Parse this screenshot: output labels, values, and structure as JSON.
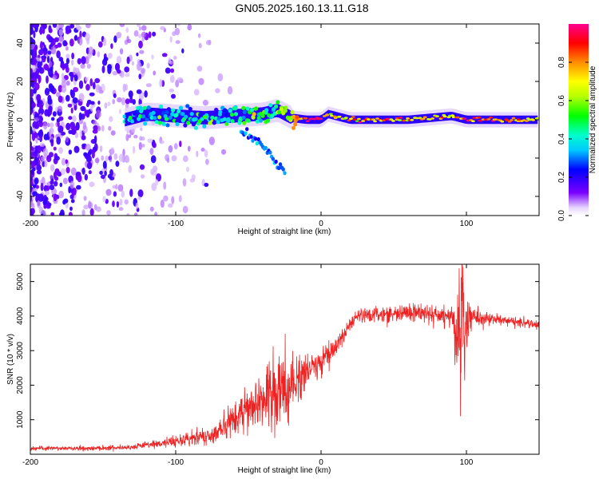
{
  "title": "GN05.2025.160.13.11.G18",
  "chart_data": [
    {
      "type": "heatmap",
      "xlabel": "Height of straight line (km)",
      "ylabel": "Frequency (Hz)",
      "xlim": [
        -200,
        150
      ],
      "ylim": [
        -50,
        50
      ],
      "x_ticks": [
        -200,
        -100,
        0,
        100
      ],
      "y_ticks": [
        -40,
        -20,
        0,
        20,
        40
      ],
      "colorbar": {
        "label": "Normalized spectral amplitude",
        "range": [
          0,
          1
        ],
        "ticks": [
          0.0,
          0.2,
          0.4,
          0.6,
          0.8
        ],
        "tick_labels": [
          "0.0",
          "0.2",
          "0.4",
          "0.6",
          "0.8"
        ]
      },
      "ridge": {
        "x": [
          -135,
          -120,
          -100,
          -80,
          -60,
          -40,
          -30,
          -20,
          -10,
          0,
          5,
          20,
          60,
          90,
          100,
          150
        ],
        "y": [
          0,
          3,
          2,
          1,
          2,
          3,
          5,
          1,
          0,
          0,
          3,
          0,
          0,
          2,
          0,
          0
        ],
        "amplitude": [
          0.3,
          0.35,
          0.35,
          0.35,
          0.4,
          0.5,
          0.55,
          0.7,
          0.95,
          0.9,
          0.7,
          0.8,
          0.8,
          0.7,
          0.9,
          0.75
        ]
      },
      "secondary_branch": {
        "x": [
          -55,
          -45,
          -35,
          -30,
          -25
        ],
        "y": [
          -5,
          -10,
          -18,
          -24,
          -28
        ],
        "amplitude": 0.3
      }
    },
    {
      "type": "line",
      "xlabel": "Height of straight line (km)",
      "ylabel": "SNR (10 * v/v)",
      "xlim": [
        -200,
        150
      ],
      "ylim": [
        0,
        5500
      ],
      "x_ticks": [
        -200,
        -100,
        0,
        100
      ],
      "y_ticks": [
        1000,
        2000,
        3000,
        4000,
        5000
      ],
      "color": "#ee2222",
      "envelope": {
        "x": [
          -200,
          -160,
          -130,
          -110,
          -90,
          -75,
          -60,
          -50,
          -40,
          -30,
          -20,
          -10,
          0,
          10,
          20,
          25,
          40,
          60,
          80,
          90,
          95,
          97,
          100,
          105,
          120,
          150
        ],
        "mean": [
          170,
          170,
          210,
          320,
          450,
          560,
          1000,
          1400,
          1600,
          1750,
          1900,
          2400,
          2700,
          3100,
          3700,
          4000,
          4050,
          4100,
          4050,
          4000,
          3600,
          3300,
          3800,
          3950,
          3900,
          3750
        ],
        "noise": [
          60,
          60,
          70,
          120,
          200,
          250,
          450,
          650,
          900,
          1100,
          900,
          500,
          350,
          250,
          200,
          200,
          200,
          230,
          250,
          300,
          1500,
          2500,
          1000,
          250,
          130,
          120
        ]
      }
    }
  ]
}
